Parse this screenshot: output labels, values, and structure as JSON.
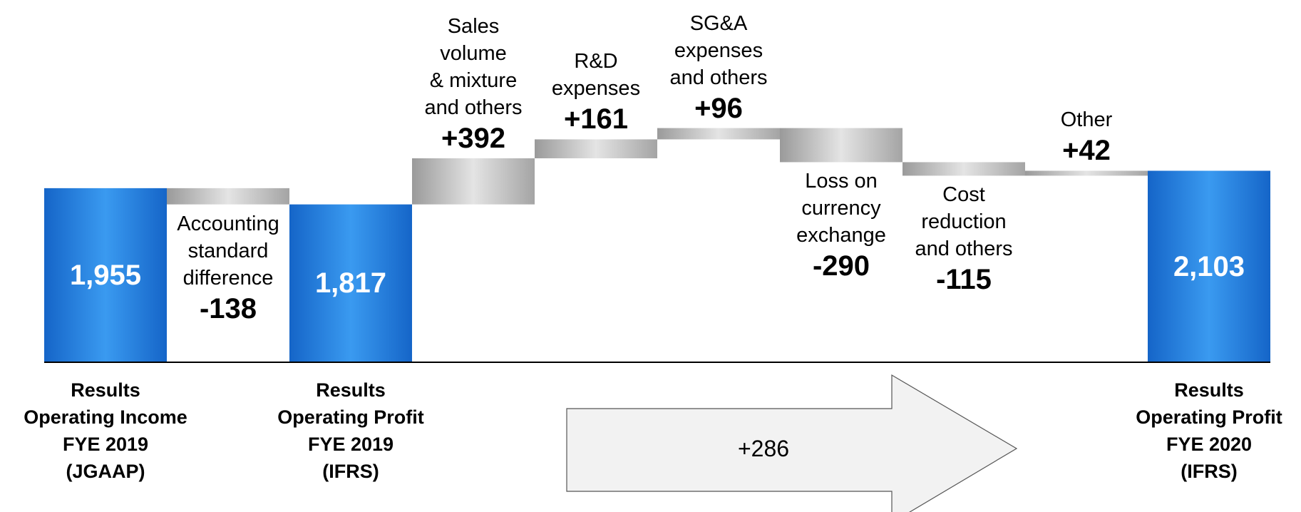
{
  "chart_data": {
    "type": "waterfall",
    "categories": [
      "Results\nOperating Income\nFYE 2019\n(JGAAP)",
      "Accounting\nstandard\ndifference",
      "Results\nOperating Profit\nFYE 2019\n(IFRS)",
      "Sales volume\n& mixture\nand others",
      "R&D\nexpenses",
      "SG&A\nexpenses\nand others",
      "Loss on\ncurrency\nexchange",
      "Cost\nreduction\nand others",
      "Other",
      "Results\nOperating Profit\nFYE 2020\n(IFRS)"
    ],
    "values": [
      1955,
      -138,
      1817,
      392,
      161,
      96,
      -290,
      -115,
      42,
      2103
    ],
    "value_labels": [
      "1,955",
      "-138",
      "1,817",
      "+392",
      "+161",
      "+96",
      "-290",
      "-115",
      "+42",
      "2,103"
    ],
    "is_total": [
      true,
      false,
      true,
      false,
      false,
      false,
      false,
      false,
      false,
      true
    ],
    "total_color": "#1f78d8",
    "step_color": "#b0b0b0",
    "ylim": [
      475,
      2700
    ],
    "annotation": "+286"
  }
}
